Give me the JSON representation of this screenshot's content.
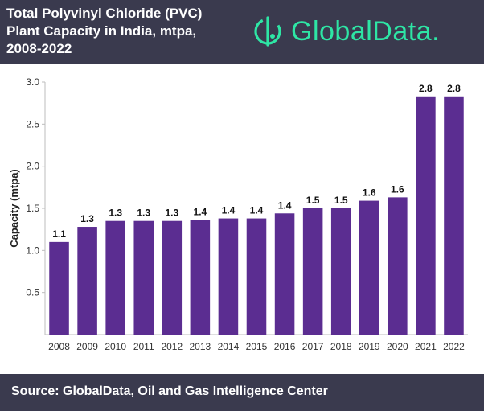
{
  "header": {
    "title": "Total Polyvinyl Chloride (PVC) Plant Capacity in India, mtpa, 2008-2022",
    "brand": "GlobalData."
  },
  "footer": {
    "source": "Source: GlobalData, Oil and Gas Intelligence Center"
  },
  "colors": {
    "header_bg": "#3a3a4e",
    "bar": "#5b2d91",
    "brand_accent": "#2ee6a5"
  },
  "chart_data": {
    "type": "bar",
    "title": "Total Polyvinyl Chloride (PVC) Plant Capacity in India, mtpa, 2008-2022",
    "xlabel": "",
    "ylabel": "Capacity (mtpa)",
    "ylim": [
      0,
      3.0
    ],
    "yticks": [
      "0.5",
      "1.0",
      "1.5",
      "2.0",
      "2.5",
      "3.0"
    ],
    "grid": false,
    "legend": "none",
    "categories": [
      "2008",
      "2009",
      "2010",
      "2011",
      "2012",
      "2013",
      "2014",
      "2015",
      "2016",
      "2017",
      "2018",
      "2019",
      "2020",
      "2021",
      "2022"
    ],
    "values": [
      1.1,
      1.28,
      1.35,
      1.35,
      1.35,
      1.36,
      1.38,
      1.38,
      1.44,
      1.5,
      1.5,
      1.59,
      1.63,
      2.83,
      2.83
    ],
    "data_labels": [
      "1.1",
      "1.3",
      "1.3",
      "1.3",
      "1.3",
      "1.4",
      "1.4",
      "1.4",
      "1.4",
      "1.5",
      "1.5",
      "1.6",
      "1.6",
      "2.8",
      "2.8"
    ]
  }
}
